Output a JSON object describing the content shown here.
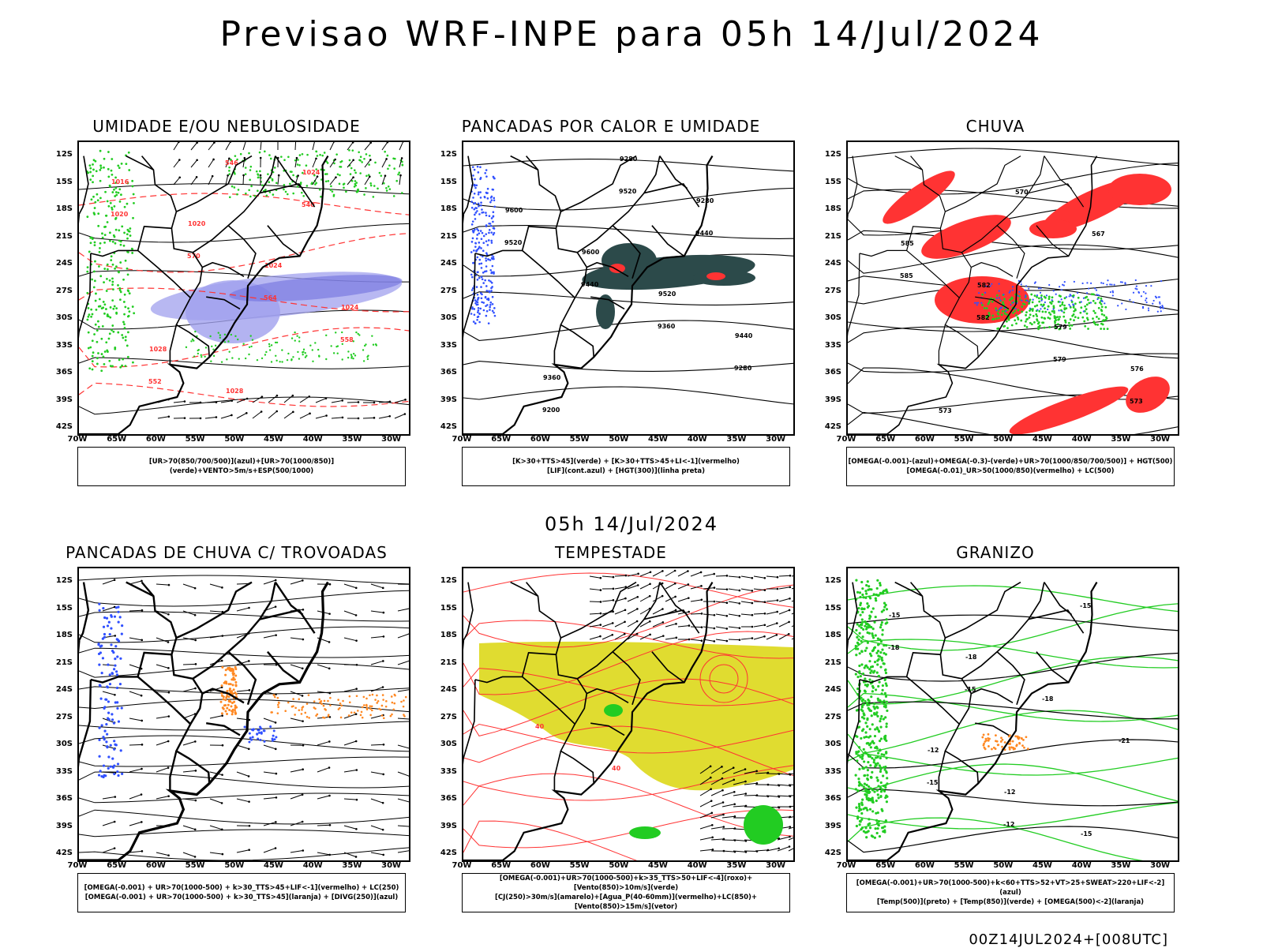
{
  "title": "Previsao WRF-INPE  para 05h 14/Jul/2024",
  "mid_date": "05h 14/Jul/2024",
  "footer": "00Z14JUL2024+[008UTC]",
  "y_ticks": [
    "12S",
    "15S",
    "18S",
    "21S",
    "24S",
    "27S",
    "30S",
    "33S",
    "36S",
    "39S",
    "42S"
  ],
  "x_ticks": [
    "70W",
    "65W",
    "60W",
    "55W",
    "50W",
    "45W",
    "40W",
    "35W",
    "30W"
  ],
  "colors": {
    "blue": "#3050ff",
    "green": "#22cc22",
    "red": "#ff3333",
    "lavender": "#a0a0ee",
    "teal": "#2c4a4a",
    "yellow": "#e0dc30",
    "orange": "#ff8822"
  },
  "panels": [
    {
      "title": "UMIDADE E/OU NEBULOSIDADE",
      "legend": [
        "[UR>70(850/700/500)](azul)+[UR>70(1000/850)](verde)+VENTO>5m/s+ESP(500/1000)"
      ],
      "labels": [
        "1016",
        "1020",
        "1024",
        "1024",
        "1028",
        "1028",
        "1024",
        "1020",
        "570",
        "564",
        "558",
        "552",
        "546",
        "540"
      ]
    },
    {
      "title": "PANCADAS POR CALOR E UMIDADE",
      "legend": [
        "[K>30+TTS>45](verde) + [K>30+TTS>45+LI<-1](vermelho)",
        "[LIF](cont.azul) + [HGT(300)](linha preta)"
      ],
      "labels": [
        "9600",
        "9600",
        "9520",
        "9440",
        "9360",
        "9280",
        "9280",
        "9520",
        "9440",
        "9360",
        "9280",
        "9200",
        "9520",
        "9440"
      ]
    },
    {
      "title": "CHUVA",
      "legend": [
        "[OMEGA(-0.001)-(azul)+OMEGA(-0.3)-(verde)+UR>70(1000/850/700/500)] + HGT(500)",
        "[OMEGA(-0.01)_UR>50(1000/850)(vermelho) + LC(500)"
      ],
      "labels": [
        "585",
        "582",
        "579",
        "576",
        "573",
        "570",
        "567",
        "585",
        "582",
        "579",
        "573"
      ]
    },
    {
      "title": "PANCADAS DE CHUVA C/ TROVOADAS",
      "legend": [
        "[OMEGA(-0.001) + UR>70(1000-500) + k>30_TTS>45+LIF<-1](vermelho) + LC(250)",
        "[OMEGA(-0.001) + UR>70(1000-500) + k>30_TTS>45](laranja) + [DIVG(250)](azul)"
      ],
      "labels": []
    },
    {
      "title": "TEMPESTADE",
      "legend": [
        "[OMEGA(-0.001)+UR>70(1000-500)+k>35_TTS>50+LIF<-4](roxo)+[Vento(850)>10m/s](verde)",
        "[CJ(250)>30m/s](amarelo)+[Agua_P(40-60mm)](vermelho)+LC(850)+[Vento(850)>15m/s](vetor)"
      ],
      "labels": [
        "40",
        "40"
      ]
    },
    {
      "title": "GRANIZO",
      "legend": [
        "[OMEGA(-0.001)+UR>70(1000-500)+k<60+TTS>52+VT>25+SWEAT>220+LIF<-2](azul)",
        "[Temp(500)](preto) + [Temp(850)](verde) + [OMEGA(500)<-2](laranja)"
      ],
      "labels": [
        "-12",
        "-12",
        "-15",
        "-15",
        "-18",
        "-18",
        "-21",
        "-15",
        "-12",
        "-15",
        "-18",
        "-15"
      ]
    }
  ]
}
